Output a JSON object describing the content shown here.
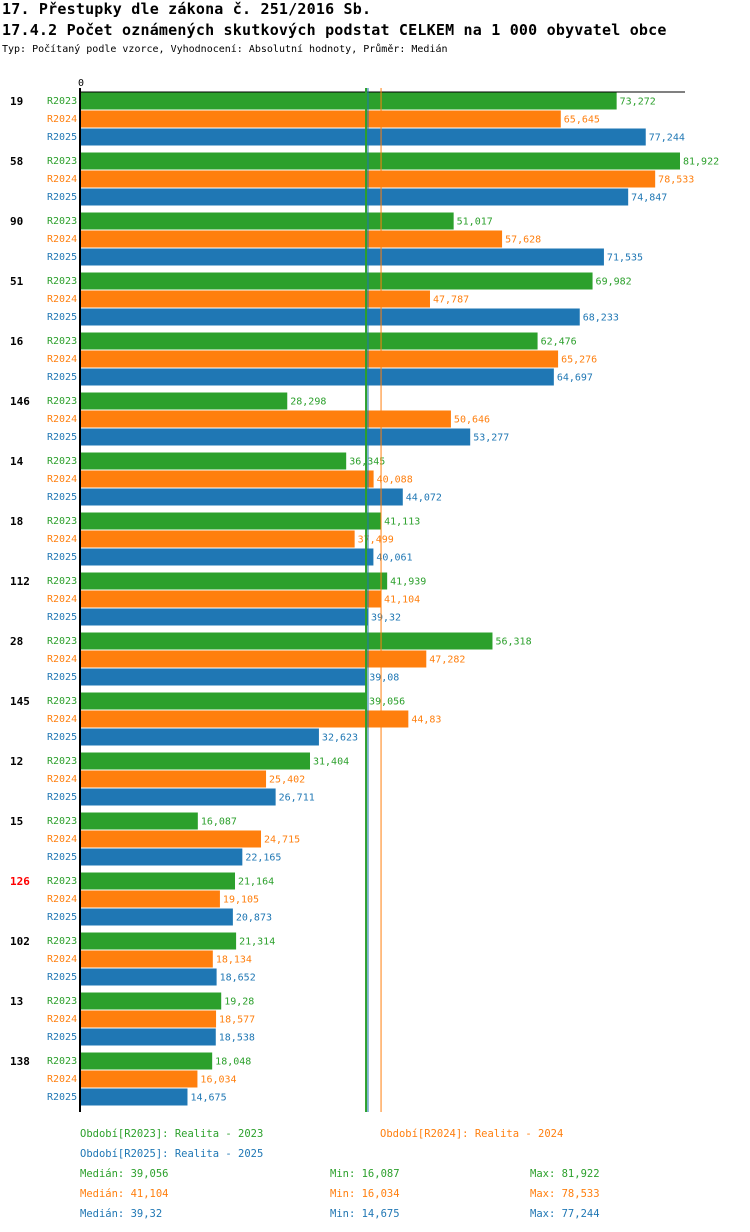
{
  "header": {
    "title": "17. Přestupky dle zákona č. 251/2016 Sb.",
    "subtitle": "17.4.2 Počet oznámených skutkových podstat CELKEM na 1 000 obyvatel obce",
    "info": "Typ: Počítaný podle vzorce, Vyhodnocení: Absolutní hodnoty, Průměr: Medián"
  },
  "chart_data": {
    "type": "bar",
    "orientation": "horizontal",
    "axis_zero_label": "0",
    "xlim": [
      0,
      82
    ],
    "categories": [
      "19",
      "58",
      "90",
      "51",
      "16",
      "146",
      "14",
      "18",
      "112",
      "28",
      "145",
      "12",
      "15",
      "126",
      "102",
      "13",
      "138"
    ],
    "highlight_category": "126",
    "highlight_color": "#ff0000",
    "series": [
      {
        "name": "R2023",
        "color": "#2ca02c",
        "values": [
          73.272,
          81.922,
          51.017,
          69.982,
          62.476,
          28.298,
          36.345,
          41.113,
          41.939,
          56.318,
          39.056,
          31.404,
          16.087,
          21.164,
          21.314,
          19.28,
          18.048
        ]
      },
      {
        "name": "R2024",
        "color": "#ff7f0e",
        "values": [
          65.645,
          78.533,
          57.628,
          47.787,
          65.276,
          50.646,
          40.088,
          37.499,
          41.104,
          47.282,
          44.83,
          25.402,
          24.715,
          19.105,
          18.134,
          18.577,
          16.034
        ]
      },
      {
        "name": "R2025",
        "color": "#1f77b4",
        "values": [
          77.244,
          74.847,
          71.535,
          68.233,
          64.697,
          53.277,
          44.072,
          40.061,
          39.32,
          39.08,
          32.623,
          26.711,
          22.165,
          20.873,
          18.652,
          18.538,
          14.675
        ]
      }
    ],
    "medians": [
      39.056,
      41.104,
      39.32
    ],
    "legend": [
      {
        "label": "Období[R2023]: Realita - 2023",
        "color": "#2ca02c"
      },
      {
        "label": "Období[R2024]: Realita - 2024",
        "color": "#ff7f0e"
      },
      {
        "label": "Období[R2025]: Realita - 2025",
        "color": "#1f77b4"
      }
    ],
    "stats": [
      {
        "median": "Medián: 39,056",
        "min": "Min: 16,087",
        "max": "Max: 81,922",
        "color": "#2ca02c"
      },
      {
        "median": "Medián: 41,104",
        "min": "Min: 16,034",
        "max": "Max: 78,533",
        "color": "#ff7f0e"
      },
      {
        "median": "Medián: 39,32",
        "min": "Min: 14,675",
        "max": "Max: 77,244",
        "color": "#1f77b4"
      }
    ]
  }
}
